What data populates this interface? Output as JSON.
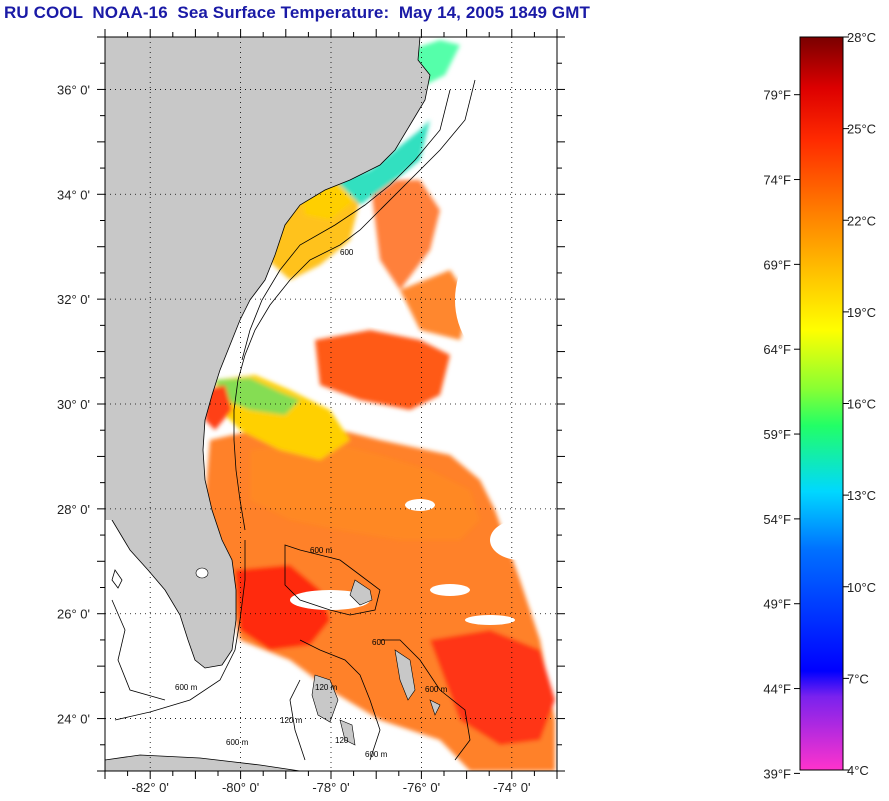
{
  "title": "RU COOL  NOAA-16  Sea Surface Temperature:  May 14, 2005 1849 GMT",
  "map": {
    "lon_range": [
      -83,
      -73
    ],
    "lat_range": [
      23,
      37
    ],
    "lat_labels": [
      "36° 0'",
      "34° 0'",
      "32° 0'",
      "30° 0'",
      "28° 0'",
      "26° 0'",
      "24° 0'"
    ],
    "lat_values": [
      36,
      34,
      32,
      30,
      28,
      26,
      24
    ],
    "lon_labels": [
      "-82° 0'",
      "-80° 0'",
      "-78° 0'",
      "-76° 0'",
      "-74° 0'"
    ],
    "lon_values": [
      -82,
      -80,
      -78,
      -76,
      -74
    ],
    "grid": true,
    "contour_labels": [
      "600",
      "600 m",
      "600 m",
      "600 m",
      "120 m",
      "120 m",
      "600 m",
      "600",
      "120",
      "600 m"
    ],
    "colors": {
      "land": "#c8c8c8",
      "ocean": "#ffffff"
    }
  },
  "colorbar": {
    "f_labels": [
      "79°F",
      "74°F",
      "69°F",
      "64°F",
      "59°F",
      "54°F",
      "49°F",
      "44°F",
      "39°F"
    ],
    "f_values": [
      79,
      74,
      69,
      64,
      59,
      54,
      49,
      44,
      39
    ],
    "c_labels": [
      "28°C",
      "25°C",
      "22°C",
      "19°C",
      "16°C",
      "13°C",
      "10°C",
      "7°C",
      "4°C"
    ],
    "c_values": [
      28,
      25,
      22,
      19,
      16,
      13,
      10,
      7,
      4
    ],
    "range_c": [
      4,
      28
    ]
  }
}
